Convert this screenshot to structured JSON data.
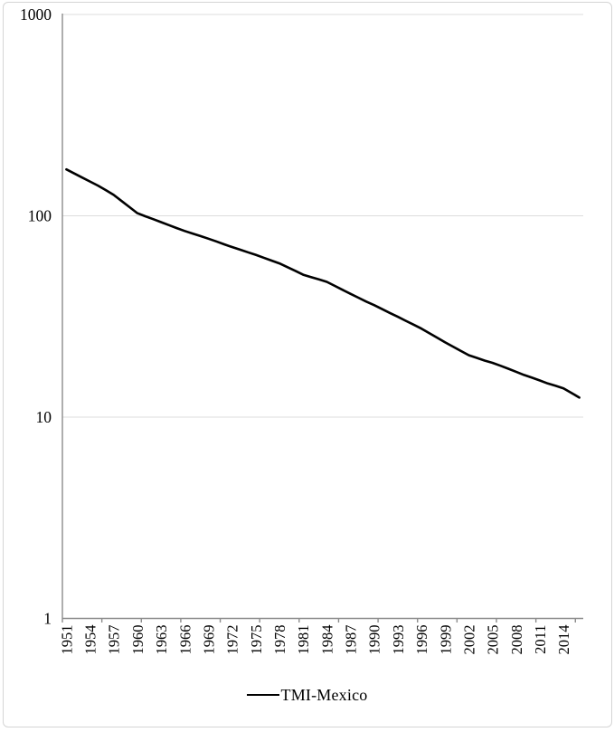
{
  "chart_data": {
    "type": "line",
    "title": "",
    "years": [
      1951,
      1952,
      1953,
      1954,
      1955,
      1956,
      1957,
      1958,
      1959,
      1960,
      1961,
      1962,
      1963,
      1964,
      1965,
      1966,
      1967,
      1968,
      1969,
      1970,
      1971,
      1972,
      1973,
      1974,
      1975,
      1976,
      1977,
      1978,
      1979,
      1980,
      1981,
      1982,
      1983,
      1984,
      1985,
      1986,
      1987,
      1988,
      1989,
      1990,
      1991,
      1992,
      1993,
      1994,
      1995,
      1996,
      1997,
      1998,
      1999,
      2000,
      2001,
      2002,
      2003,
      2004,
      2005,
      2006,
      2007,
      2008,
      2009,
      2010,
      2011,
      2012,
      2013,
      2014,
      2015,
      2016
    ],
    "series": [
      {
        "name": "TMI-Mexico",
        "color": "#000000",
        "values": [
          170,
          162.3,
          155.0,
          148.0,
          141.3,
          134.2,
          127.0,
          118.4,
          110.4,
          103.0,
          99.5,
          96.2,
          93.0,
          89.9,
          86.9,
          84.0,
          81.6,
          79.3,
          77.0,
          74.6,
          72.2,
          70.0,
          67.9,
          65.9,
          64.0,
          61.9,
          59.9,
          58.0,
          55.6,
          53.3,
          51.0,
          49.6,
          48.3,
          47.0,
          44.9,
          42.9,
          41.0,
          39.2,
          37.5,
          36.0,
          34.4,
          32.9,
          31.5,
          30.1,
          28.8,
          27.5,
          26.1,
          24.8,
          23.5,
          22.4,
          21.3,
          20.3,
          19.7,
          19.1,
          18.6,
          18.0,
          17.4,
          16.8,
          16.2,
          15.7,
          15.2,
          14.7,
          14.3,
          13.9,
          13.2,
          12.5
        ]
      }
    ],
    "x_tick_labels": [
      "1951",
      "1954",
      "1957",
      "1960",
      "1963",
      "1966",
      "1969",
      "1972",
      "1975",
      "1978",
      "1981",
      "1984",
      "1987",
      "1990",
      "1993",
      "1996",
      "1999",
      "2002",
      "2005",
      "2008",
      "2011",
      "2014"
    ],
    "x_axis": {
      "label_interval_years": 3,
      "tick_interval_years": 5
    },
    "y_axis": {
      "scale": "log",
      "min": 1,
      "max": 1000,
      "ticks": [
        1000,
        100,
        10,
        1
      ],
      "tick_labels": [
        "1000",
        "100",
        "10",
        "1"
      ]
    },
    "grid": {
      "horizontal": true
    },
    "legend": {
      "position": "bottom",
      "entries": [
        {
          "label": "TMI-Mexico",
          "color": "#000000"
        }
      ]
    },
    "colors": {
      "line": "#000000",
      "axis": "#8c8c8c",
      "grid": "#dcdcdc",
      "text": "#000000",
      "border": "#d5d5d5"
    }
  }
}
